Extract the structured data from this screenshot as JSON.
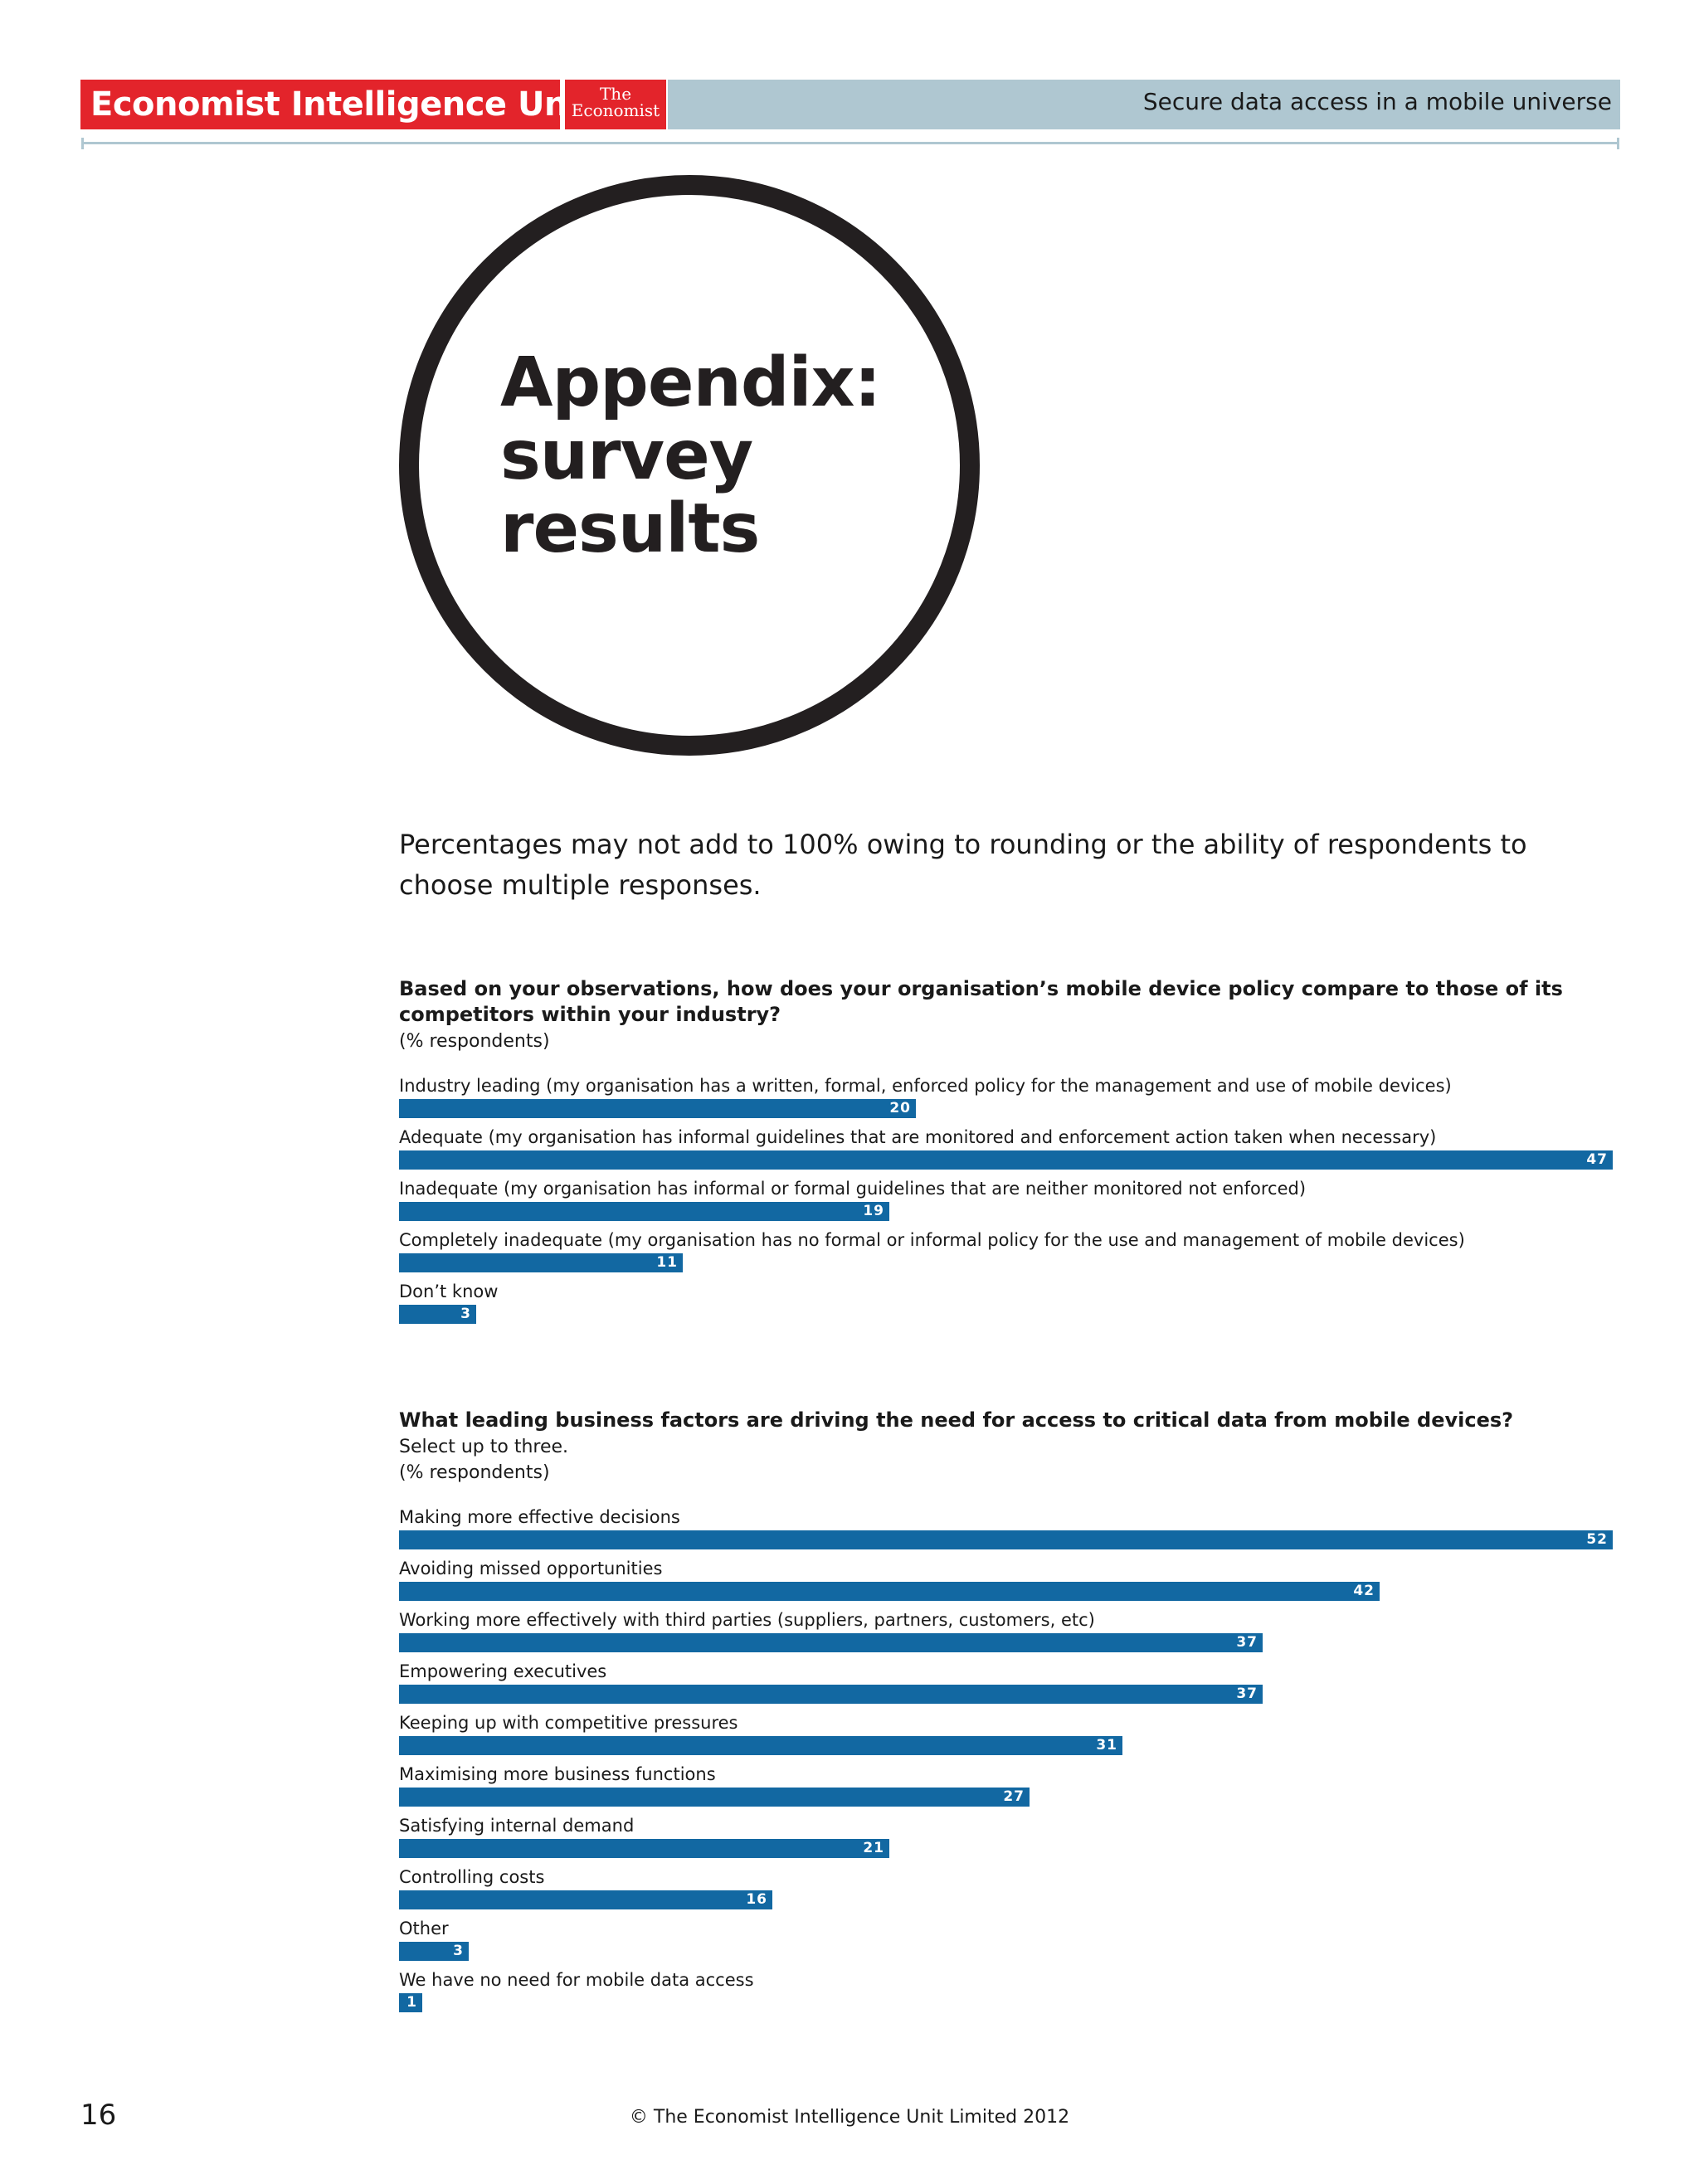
{
  "header": {
    "brand": "Economist Intelligence Unit",
    "logo_line1": "The",
    "logo_line2": "Economist",
    "report_title": "Secure data access in a mobile universe"
  },
  "title_lines": [
    "Appendix:",
    "survey",
    "results"
  ],
  "note": "Percentages may not add to 100% owing to rounding or the ability of respondents to choose multiple responses.",
  "colors": {
    "brand_red": "#e3242b",
    "band_blue": "#afc7d1",
    "bar_blue": "#1268a2"
  },
  "chart_data": [
    {
      "type": "bar",
      "orientation": "horizontal",
      "title": "Based on your observations, how does your organisation’s mobile device policy compare to those of its competitors within your industry?",
      "subtitle": "",
      "units_note": "(% respondents)",
      "xlim": [
        0,
        47
      ],
      "categories": [
        "Industry leading (my organisation has a written, formal, enforced policy for the management and use of mobile devices)",
        "Adequate (my organisation has informal guidelines that are monitored and enforcement action taken when necessary)",
        "Inadequate (my organisation has informal or formal guidelines that are neither monitored not enforced)",
        "Completely inadequate (my organisation has no formal or informal policy for the use and management of mobile devices)",
        "Don’t know"
      ],
      "values": [
        20,
        47,
        19,
        11,
        3
      ]
    },
    {
      "type": "bar",
      "orientation": "horizontal",
      "title": "What leading business factors are driving the need for access to critical data from mobile devices?",
      "subtitle": "Select up to three.",
      "units_note": "(% respondents)",
      "xlim": [
        0,
        52
      ],
      "categories": [
        "Making more effective decisions",
        "Avoiding missed opportunities",
        "Working more effectively with third parties (suppliers, partners, customers, etc)",
        "Empowering executives",
        "Keeping up with competitive pressures",
        "Maximising more business functions",
        "Satisfying internal demand",
        "Controlling costs",
        "Other",
        "We have no need for mobile data access"
      ],
      "values": [
        52,
        42,
        37,
        37,
        31,
        27,
        21,
        16,
        3,
        1
      ]
    }
  ],
  "footer": {
    "page_number": "16",
    "copyright": "© The Economist Intelligence Unit Limited 2012"
  }
}
